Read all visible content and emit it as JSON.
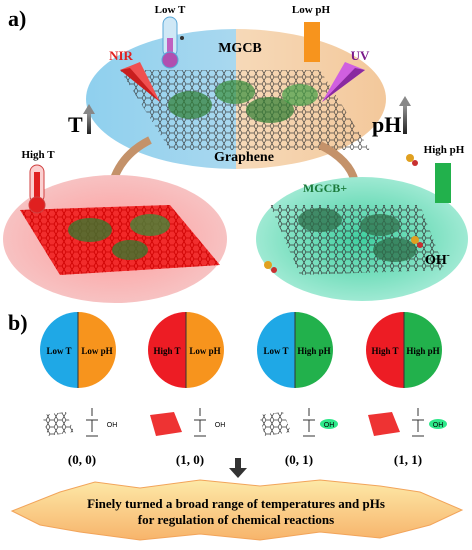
{
  "panel_a": {
    "label": "a)",
    "center": {
      "title": "MGCB",
      "subtitle": "Graphene"
    },
    "low_t": "Low T",
    "low_ph": "Low pH",
    "nir": "NIR",
    "uv": "UV",
    "t_arrow": "T",
    "ph_arrow": "pH",
    "high_t": "High T",
    "high_ph": "High pH",
    "mgcb_plus": "MGCB+",
    "oh_minus": "OH",
    "oh_sup": "-"
  },
  "panel_b": {
    "label": "b)",
    "states": [
      {
        "left": "Low T",
        "right": "Low pH",
        "code": "(0, 0)",
        "left_color": "#1fa8e6",
        "right_color": "#f7941d"
      },
      {
        "left": "High T",
        "right": "Low pH",
        "code": "(1, 0)",
        "left_color": "#ed1c24",
        "right_color": "#f7941d"
      },
      {
        "left": "Low T",
        "right": "High pH",
        "code": "(0, 1)",
        "left_color": "#1fa8e6",
        "right_color": "#22b14c"
      },
      {
        "left": "High T",
        "right": "High pH",
        "code": "(1, 1)",
        "left_color": "#ed1c24",
        "right_color": "#22b14c"
      }
    ],
    "oh_label": "OH",
    "banner_line1": "Finely turned a broad range of temperatures and pHs",
    "banner_line2": "for regulation of chemical reactions"
  },
  "colors": {
    "blue": "#1fa8e6",
    "orange": "#f7941d",
    "red": "#ed1c24",
    "green": "#22b14c",
    "teal_ellipse": "#5fd6b4",
    "pink_ellipse": "#f6b0b0"
  }
}
